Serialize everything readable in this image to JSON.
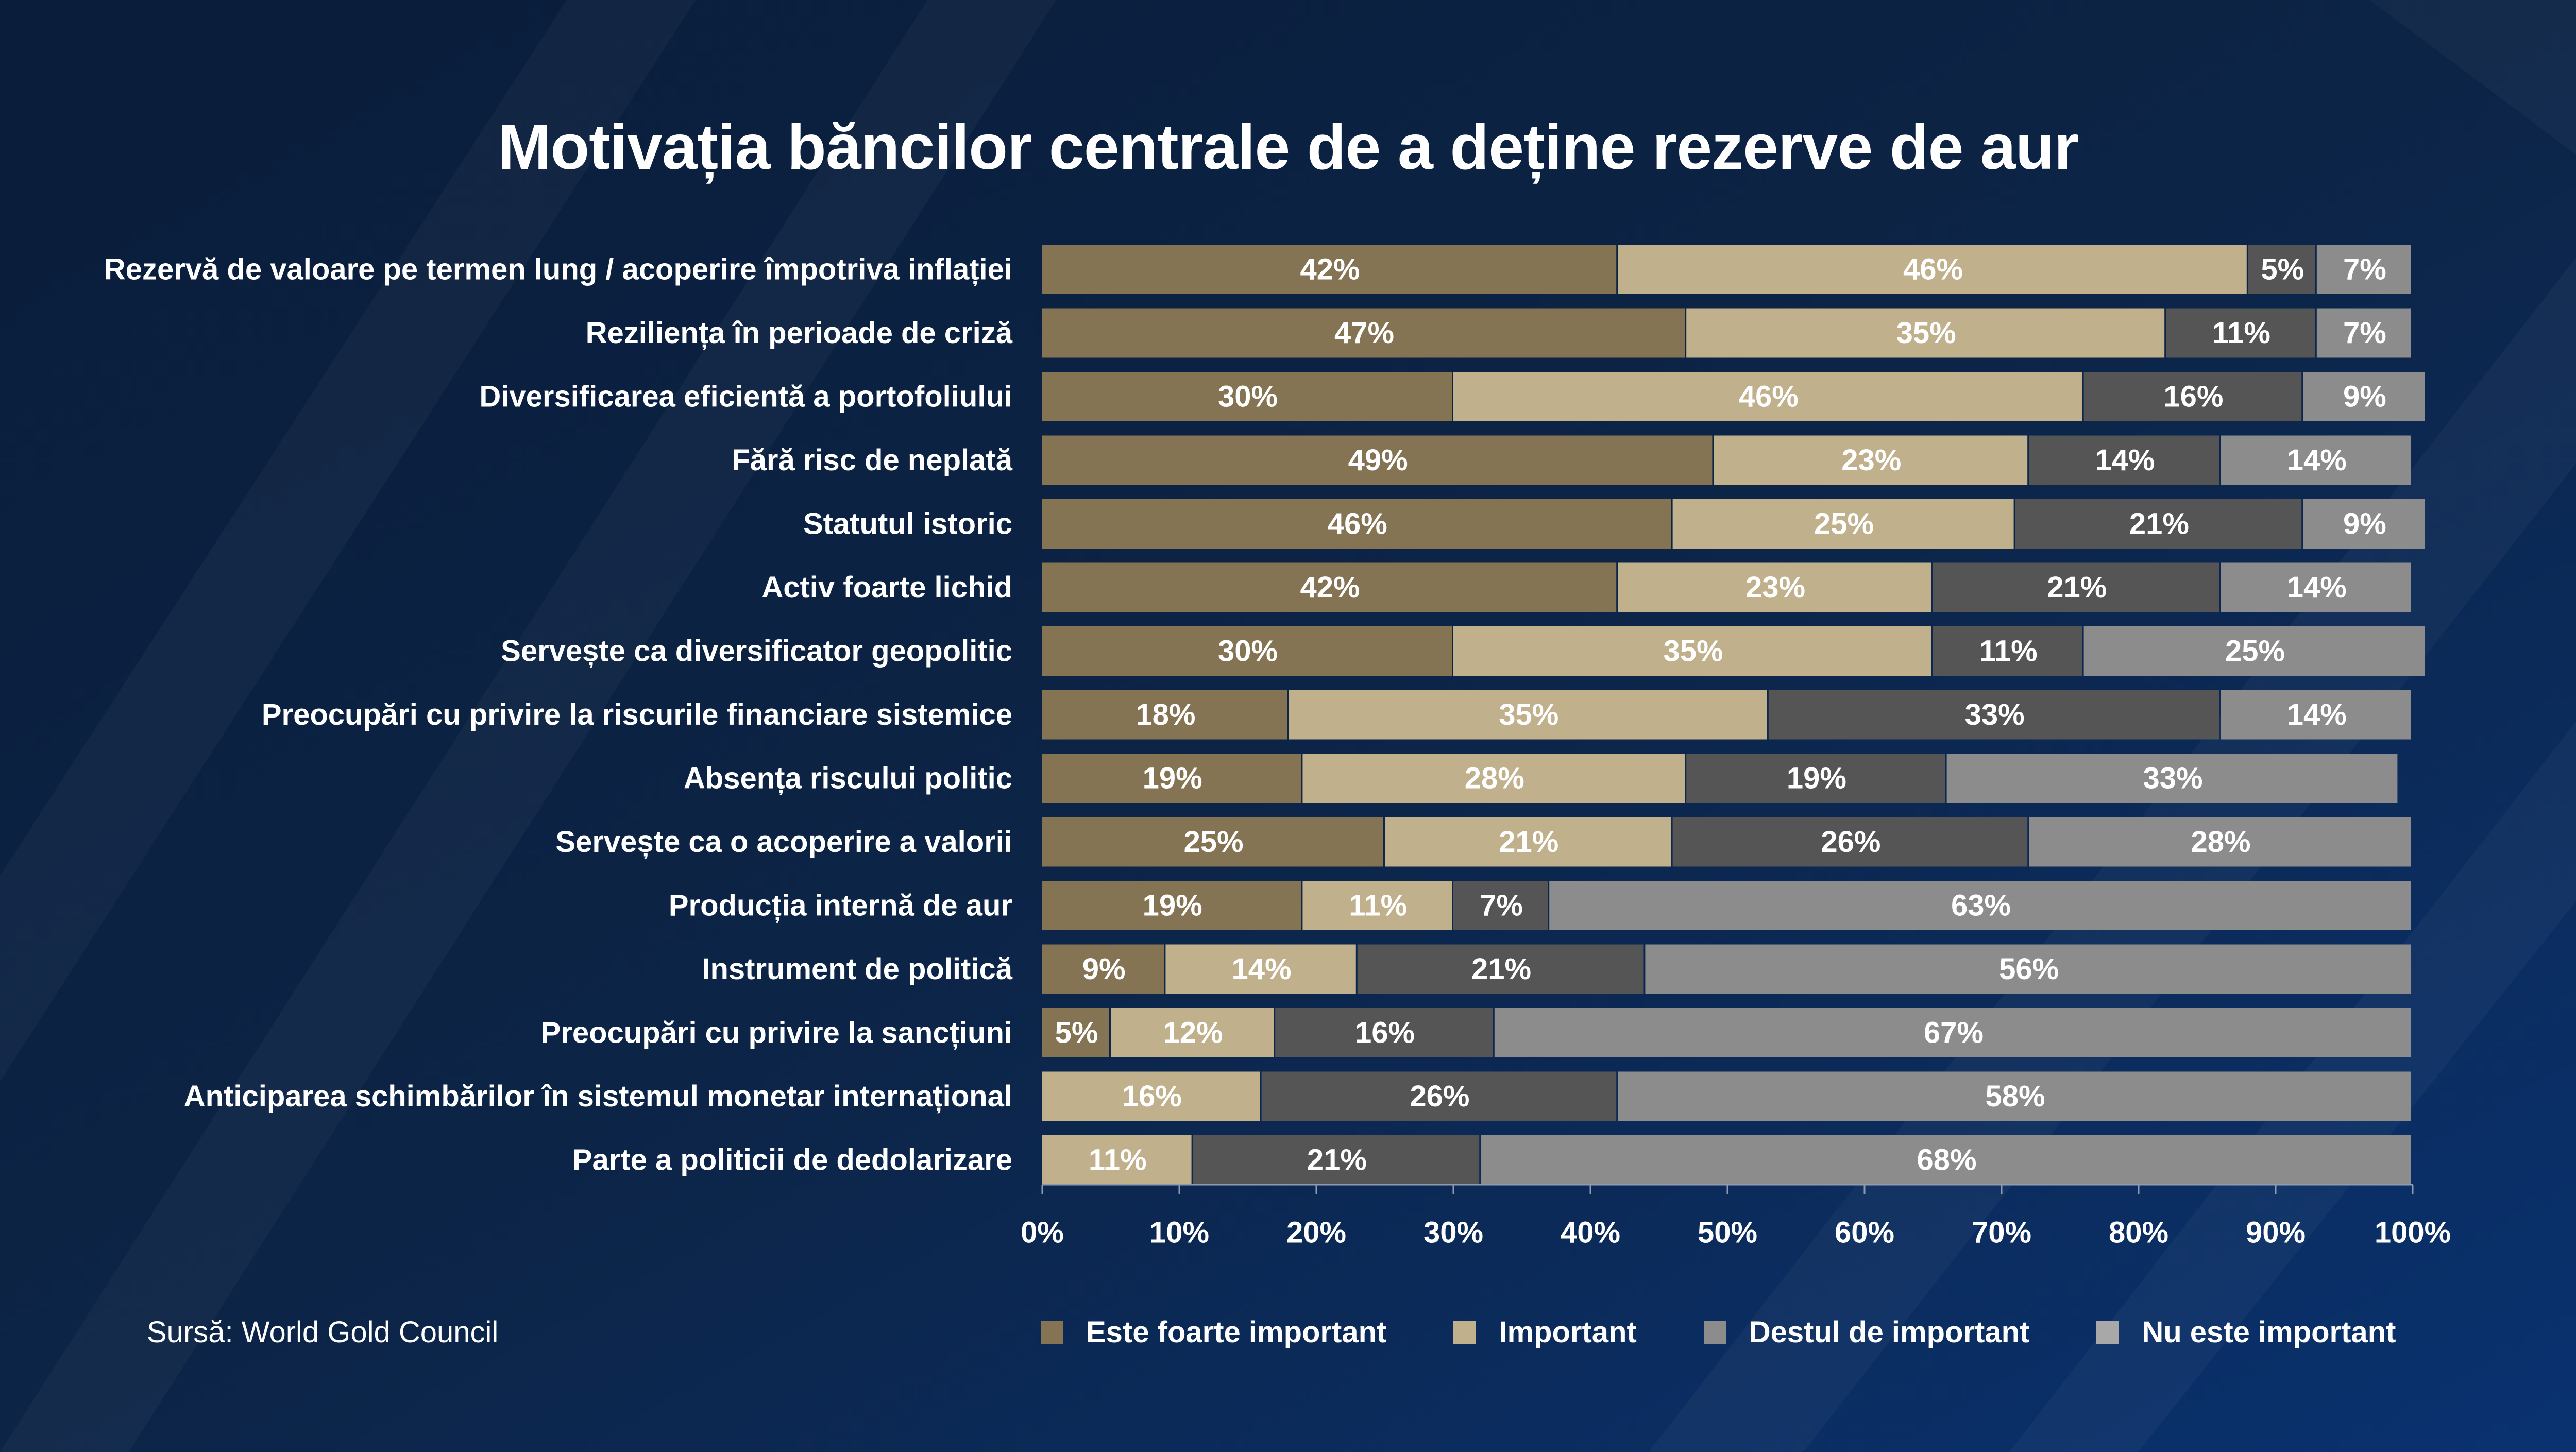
{
  "title": "Motivația băncilor centrale de a deține rezerve de aur",
  "source": "Sursă: World Gold Council",
  "colors": {
    "background": "#0b2344",
    "very_important": "#857453",
    "important": "#c0b08c",
    "somewhat_important": "#555555",
    "not_important": "#8c8c8c"
  },
  "chart_data": {
    "type": "bar",
    "orientation": "horizontal",
    "stacked": true,
    "xlim": [
      0,
      100
    ],
    "xticks": [
      "0%",
      "10%",
      "20%",
      "30%",
      "40%",
      "50%",
      "60%",
      "70%",
      "80%",
      "90%",
      "100%"
    ],
    "legend_position": "bottom",
    "categories": [
      "Rezervă de valoare pe termen lung / acoperire împotriva inflației",
      "Reziliența în perioade de criză",
      "Diversificarea eficientă a portofoliului",
      "Fără risc de neplată",
      "Statutul istoric",
      "Activ foarte lichid",
      "Servește ca diversificator geopolitic",
      "Preocupări cu privire la riscurile financiare sistemice",
      "Absența riscului politic",
      "Servește ca o acoperire a valorii",
      "Producția internă de aur",
      "Instrument de politică",
      "Preocupări cu privire la sancțiuni",
      "Anticiparea schimbărilor în sistemul monetar internațional",
      "Parte a politicii de dedolarizare"
    ],
    "series": [
      {
        "name": "Este foarte important",
        "values": [
          42,
          47,
          30,
          49,
          46,
          42,
          30,
          18,
          19,
          25,
          19,
          9,
          5,
          0,
          0
        ]
      },
      {
        "name": "Important",
        "values": [
          46,
          35,
          46,
          23,
          25,
          23,
          35,
          35,
          28,
          21,
          11,
          14,
          12,
          16,
          11
        ]
      },
      {
        "name": "Destul de important",
        "values": [
          5,
          11,
          16,
          14,
          21,
          21,
          11,
          33,
          19,
          26,
          7,
          21,
          16,
          26,
          21
        ]
      },
      {
        "name": "Nu este important",
        "values": [
          7,
          7,
          9,
          14,
          9,
          14,
          25,
          14,
          33,
          28,
          63,
          56,
          67,
          58,
          68
        ]
      }
    ]
  }
}
